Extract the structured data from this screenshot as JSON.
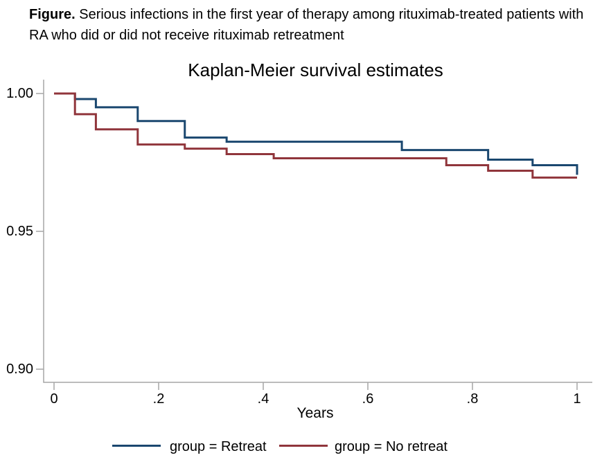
{
  "caption": {
    "label": "Figure.",
    "text": "Serious infections in the first year of therapy among rituximab-treated patients with RA who did or did not receive rituximab retreatment"
  },
  "chart": {
    "title": "Kaplan-Meier survival estimates",
    "x_axis_label": "Years",
    "y_tick_labels": [
      "1.00",
      "0.95",
      "0.90"
    ],
    "x_tick_labels": [
      "0",
      ".2",
      ".4",
      ".6",
      ".8",
      "1"
    ]
  },
  "legend": {
    "items": [
      {
        "label": "group = Retreat",
        "color": "#1a476f"
      },
      {
        "label": "group = No retreat",
        "color": "#90353b"
      }
    ]
  },
  "colors": {
    "axis": "#a6a6a6",
    "retreat_line": "#1a476f",
    "no_retreat_line": "#90353b"
  },
  "chart_data": {
    "type": "line",
    "subtype": "step-survival",
    "title": "Kaplan-Meier survival estimates",
    "xlabel": "Years",
    "ylabel": "",
    "xlim": [
      0,
      1
    ],
    "ylim": [
      0.9,
      1.0
    ],
    "xticks": [
      0,
      0.2,
      0.4,
      0.6,
      0.8,
      1
    ],
    "yticks": [
      1.0,
      0.95,
      0.9
    ],
    "grid": false,
    "legend_position": "bottom",
    "series": [
      {
        "name": "group = Retreat",
        "color": "#1a476f",
        "step_points": [
          [
            0,
            1.0
          ],
          [
            0.04,
            0.998
          ],
          [
            0.08,
            0.995
          ],
          [
            0.16,
            0.99
          ],
          [
            0.25,
            0.984
          ],
          [
            0.33,
            0.9825
          ],
          [
            0.665,
            0.9795
          ],
          [
            0.83,
            0.976
          ],
          [
            0.915,
            0.974
          ],
          [
            1.0,
            0.9705
          ]
        ],
        "end_time": 1.0
      },
      {
        "name": "group = No retreat",
        "color": "#90353b",
        "step_points": [
          [
            0,
            1.0
          ],
          [
            0.04,
            0.9925
          ],
          [
            0.08,
            0.987
          ],
          [
            0.16,
            0.9815
          ],
          [
            0.25,
            0.98
          ],
          [
            0.33,
            0.978
          ],
          [
            0.42,
            0.9765
          ],
          [
            0.75,
            0.974
          ],
          [
            0.83,
            0.972
          ],
          [
            0.915,
            0.9695
          ]
        ],
        "end_time": 1.0
      }
    ]
  }
}
